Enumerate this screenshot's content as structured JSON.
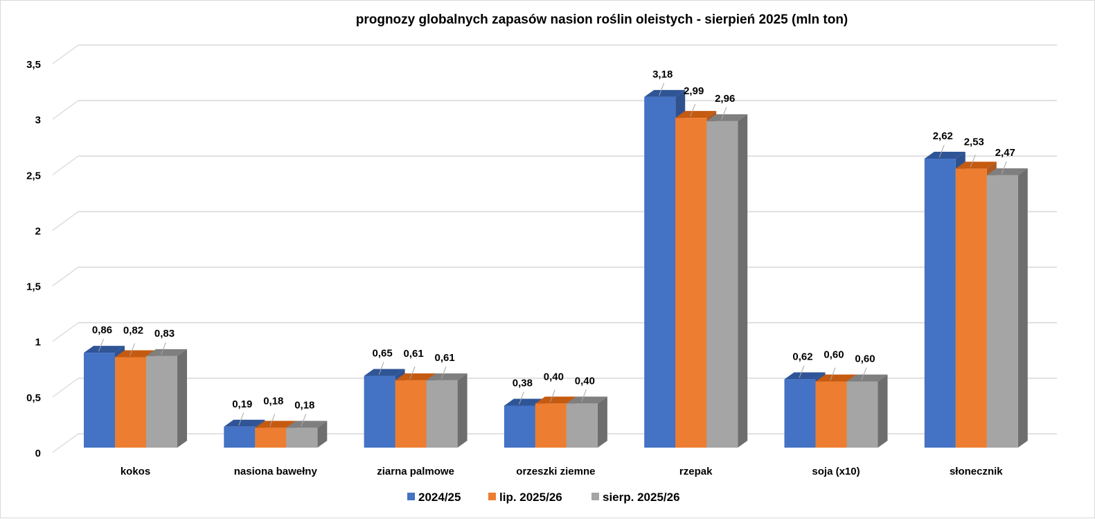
{
  "chart_data": {
    "type": "bar",
    "style": "3d-clustered-column",
    "title": "prognozy globalnych zapasów nasion roślin oleistych  - sierpień 2025 (mln ton)",
    "xlabel": "",
    "ylabel": "",
    "ylim": [
      0,
      3.5
    ],
    "yticks": [
      0,
      0.5,
      1,
      1.5,
      2,
      2.5,
      3,
      3.5
    ],
    "ytick_labels": [
      "0",
      "0,5",
      "1",
      "1,5",
      "2",
      "2,5",
      "3",
      "3,5"
    ],
    "grid": true,
    "legend_position": "bottom",
    "categories": [
      "kokos",
      "nasiona bawełny",
      "ziarna palmowe",
      "orzeszki ziemne",
      "rzepak",
      "soja (x10)",
      "słonecznik"
    ],
    "series": [
      {
        "name": "2024/25",
        "color": "#4472C4",
        "top_color": "#2F5597",
        "side_color": "#2F528F",
        "values": [
          0.86,
          0.19,
          0.65,
          0.38,
          3.18,
          0.62,
          2.62
        ],
        "labels": [
          "0,86",
          "0,19",
          "0,65",
          "0,38",
          "3,18",
          "0,62",
          "2,62"
        ]
      },
      {
        "name": "lip. 2025/26",
        "color": "#ED7D31",
        "top_color": "#C55A11",
        "side_color": "#AE5A21",
        "values": [
          0.82,
          0.18,
          0.61,
          0.4,
          2.99,
          0.6,
          2.53
        ],
        "labels": [
          "0,82",
          "0,18",
          "0,61",
          "0,40",
          "2,99",
          "0,60",
          "2,53"
        ]
      },
      {
        "name": "sierp. 2025/26",
        "color": "#A5A5A5",
        "top_color": "#7F7F7F",
        "side_color": "#6E6E6E",
        "values": [
          0.83,
          0.18,
          0.61,
          0.4,
          2.96,
          0.6,
          2.47
        ],
        "labels": [
          "0,83",
          "0,18",
          "0,61",
          "0,40",
          "2,96",
          "0,60",
          "2,47"
        ]
      }
    ]
  }
}
